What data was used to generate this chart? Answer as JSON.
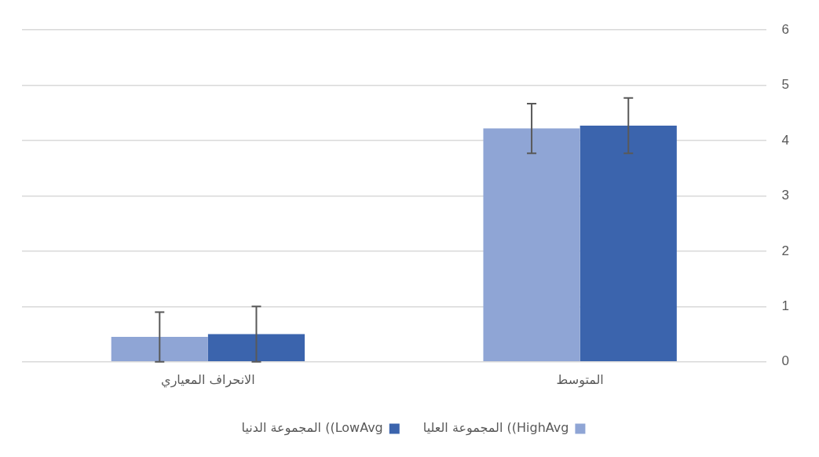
{
  "chart_data": {
    "type": "bar",
    "categories": [
      "الانحراف المعياري",
      "المتوسط"
    ],
    "series": [
      {
        "name": "المجموعة العليا ((HighAvg",
        "color": "#8fa5d5",
        "values": [
          0.45,
          4.22
        ],
        "errors": [
          0.45,
          0.45
        ]
      },
      {
        "name": "المجموعة الدنيا ((LowAvg",
        "color": "#3b64ad",
        "values": [
          0.5,
          4.27
        ],
        "errors": [
          0.5,
          0.5
        ]
      }
    ],
    "ylim": [
      0,
      6
    ],
    "yticks": [
      0,
      1,
      2,
      3,
      4,
      5,
      6
    ],
    "grid": "y",
    "legend": "bottom"
  }
}
